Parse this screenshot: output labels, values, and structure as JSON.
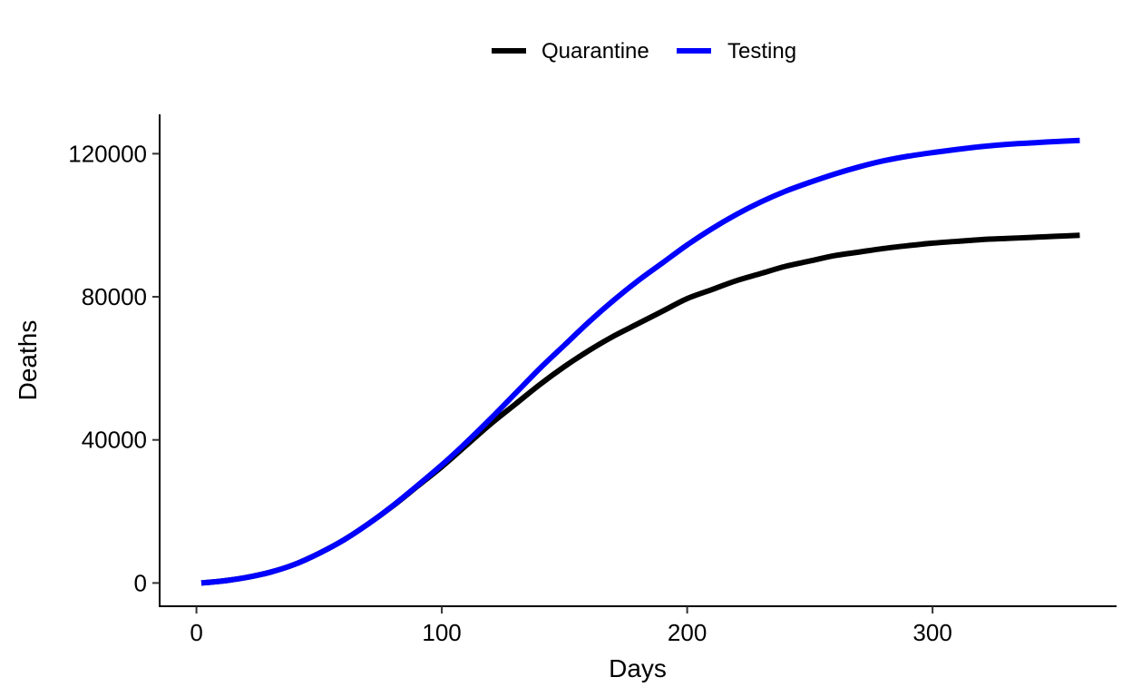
{
  "chart_data": {
    "type": "line",
    "title": "",
    "xlabel": "Days",
    "ylabel": "Deaths",
    "xlim": [
      -15,
      375
    ],
    "ylim": [
      -6500,
      131000
    ],
    "x_ticks": [
      0,
      100,
      200,
      300
    ],
    "x_tick_labels": [
      "0",
      "100",
      "200",
      "300"
    ],
    "y_ticks": [
      0,
      40000,
      80000,
      120000
    ],
    "y_tick_labels": [
      "0",
      "40000",
      "80000",
      "120000"
    ],
    "grid": false,
    "legend_position": "top",
    "series": [
      {
        "name": "Quarantine",
        "color": "#000000",
        "x": [
          2,
          10,
          20,
          30,
          40,
          50,
          60,
          70,
          80,
          90,
          100,
          110,
          120,
          130,
          140,
          150,
          160,
          170,
          180,
          190,
          200,
          210,
          220,
          230,
          240,
          250,
          260,
          270,
          280,
          290,
          300,
          310,
          320,
          330,
          340,
          350,
          360
        ],
        "values": [
          0,
          500,
          1500,
          3000,
          5200,
          8300,
          12000,
          16500,
          21500,
          27000,
          32500,
          38500,
          44500,
          50000,
          55500,
          60500,
          65000,
          69000,
          72500,
          76000,
          79500,
          82000,
          84500,
          86500,
          88500,
          90000,
          91500,
          92500,
          93500,
          94300,
          95000,
          95500,
          96000,
          96300,
          96600,
          96900,
          97200
        ]
      },
      {
        "name": "Testing",
        "color": "#0000ff",
        "x": [
          2,
          10,
          20,
          30,
          40,
          50,
          60,
          70,
          80,
          90,
          100,
          110,
          120,
          130,
          140,
          150,
          160,
          170,
          180,
          190,
          200,
          210,
          220,
          230,
          240,
          250,
          260,
          270,
          280,
          290,
          300,
          310,
          320,
          330,
          340,
          350,
          360
        ],
        "values": [
          0,
          500,
          1500,
          3000,
          5200,
          8300,
          12000,
          16500,
          21600,
          27200,
          33000,
          39300,
          46000,
          53000,
          60000,
          66500,
          73000,
          79000,
          84500,
          89500,
          94500,
          99000,
          103000,
          106500,
          109500,
          112000,
          114300,
          116300,
          118000,
          119300,
          120300,
          121200,
          122000,
          122600,
          123000,
          123400,
          123700
        ]
      }
    ]
  }
}
